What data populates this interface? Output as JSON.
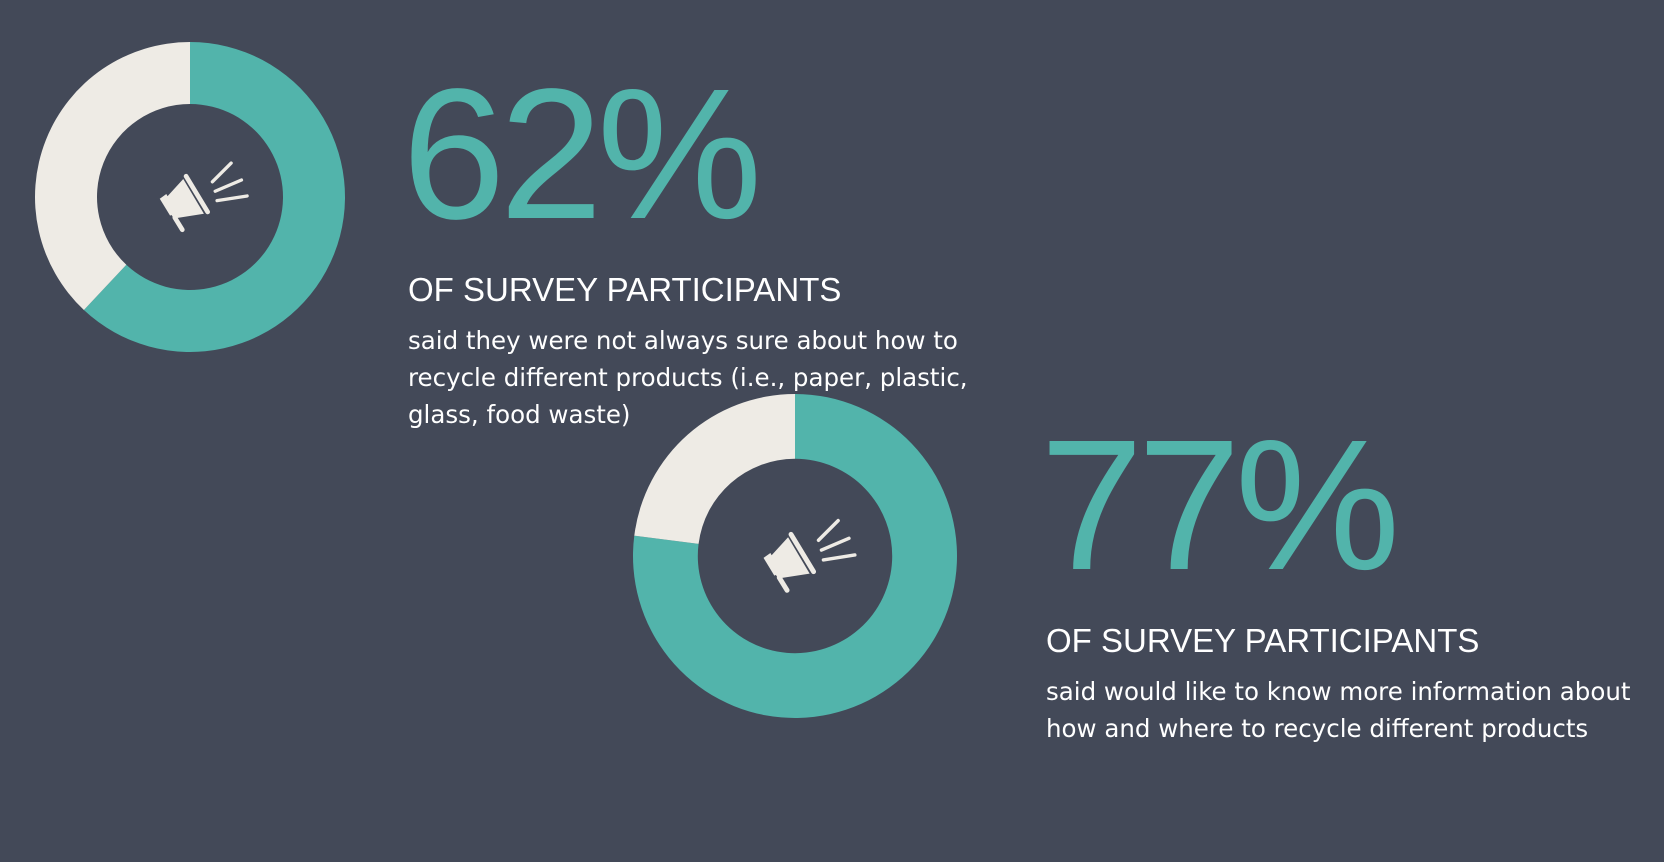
{
  "colors": {
    "background": "#434958",
    "accent": "#52b4ab",
    "remainder": "#eeebe5",
    "text": "#ffffff"
  },
  "chart_data": [
    {
      "type": "pie",
      "variant": "donut",
      "values": [
        62,
        38
      ],
      "percent_label": "62%",
      "subheading": "OF SURVEY PARTICIPANTS",
      "description": "said they were not always sure about how to recycle different products (i.e., paper, plastic, glass, food waste)",
      "center_icon": "megaphone-icon"
    },
    {
      "type": "pie",
      "variant": "donut",
      "values": [
        77,
        23
      ],
      "percent_label": "77%",
      "subheading": "OF SURVEY PARTICIPANTS",
      "description": "said would like to know more information about how and where to recycle different products",
      "center_icon": "megaphone-icon"
    }
  ]
}
